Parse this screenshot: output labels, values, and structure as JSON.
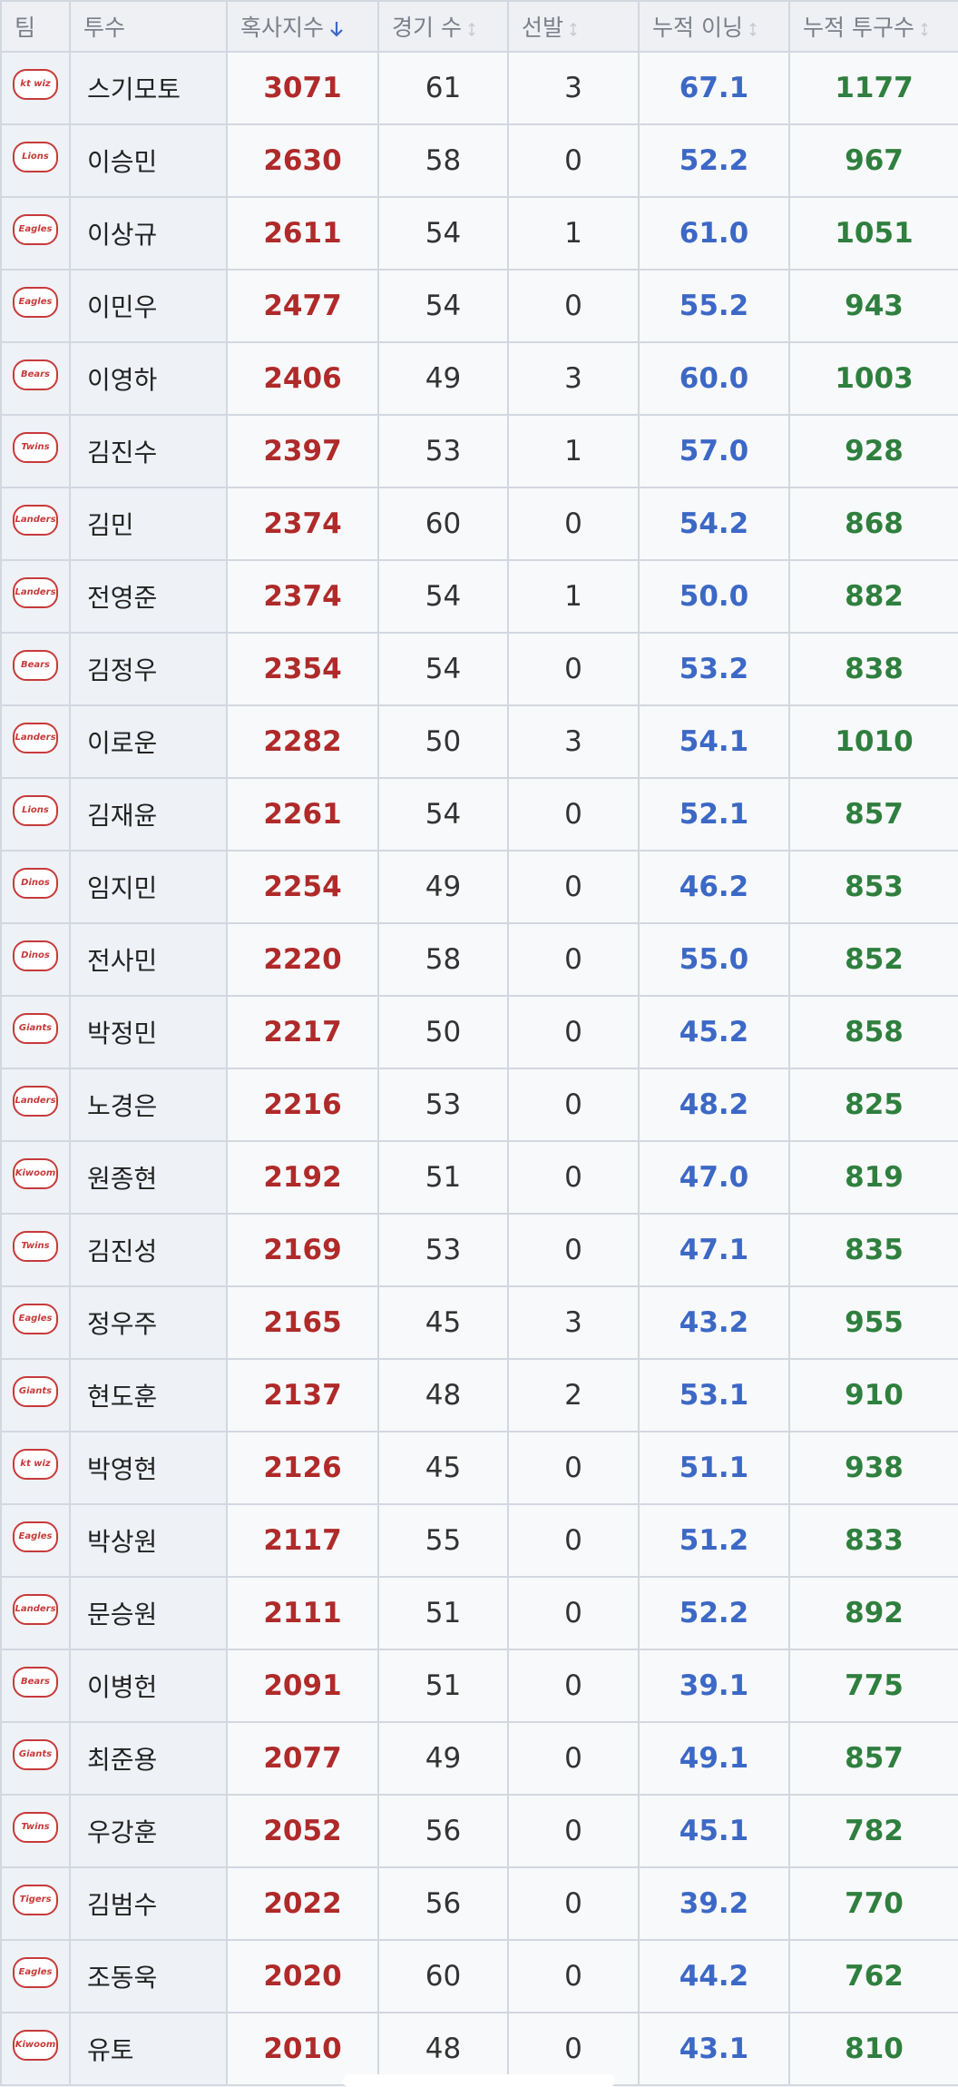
{
  "table": {
    "header": [
      "팀",
      "투수",
      "혹사지수",
      "경기 수",
      "선발",
      "누적 이닝",
      "누적 투구수"
    ],
    "rows": [
      [
        "kt wiz",
        "스기모토",
        3071,
        61,
        3,
        "67.1",
        1177
      ],
      [
        "Lions",
        "이승민",
        2630,
        58,
        0,
        "52.2",
        967
      ],
      [
        "Eagles",
        "이상규",
        2611,
        54,
        1,
        "61.0",
        1051
      ],
      [
        "Eagles",
        "이민우",
        2477,
        54,
        0,
        "55.2",
        943
      ],
      [
        "Bears",
        "이영하",
        2406,
        49,
        3,
        "60.0",
        1003
      ],
      [
        "Twins",
        "김진수",
        2397,
        53,
        1,
        "57.0",
        928
      ],
      [
        "Landers",
        "김민",
        2374,
        60,
        0,
        "54.2",
        868
      ],
      [
        "Landers",
        "전영준",
        2374,
        54,
        1,
        "50.0",
        882
      ],
      [
        "Bears",
        "김정우",
        2354,
        54,
        0,
        "53.2",
        838
      ],
      [
        "Landers",
        "이로운",
        2282,
        50,
        3,
        "54.1",
        1010
      ],
      [
        "Lions",
        "김재윤",
        2261,
        54,
        0,
        "52.1",
        857
      ],
      [
        "Dinos",
        "임지민",
        2254,
        49,
        0,
        "46.2",
        853
      ],
      [
        "Dinos",
        "전사민",
        2220,
        58,
        0,
        "55.0",
        852
      ],
      [
        "Giants",
        "박정민",
        2217,
        50,
        0,
        "45.2",
        858
      ],
      [
        "Landers",
        "노경은",
        2216,
        53,
        0,
        "48.2",
        825
      ],
      [
        "Kiwoom",
        "원종현",
        2192,
        51,
        0,
        "47.0",
        819
      ],
      [
        "Twins",
        "김진성",
        2169,
        53,
        0,
        "47.1",
        835
      ],
      [
        "Eagles",
        "정우주",
        2165,
        45,
        3,
        "43.2",
        955
      ],
      [
        "Giants",
        "현도훈",
        2137,
        48,
        2,
        "53.1",
        910
      ],
      [
        "kt wiz",
        "박영현",
        2126,
        45,
        0,
        "51.1",
        938
      ],
      [
        "Eagles",
        "박상원",
        2117,
        55,
        0,
        "51.2",
        833
      ],
      [
        "Landers",
        "문승원",
        2111,
        51,
        0,
        "52.2",
        892
      ],
      [
        "Bears",
        "이병헌",
        2091,
        51,
        0,
        "39.1",
        775
      ],
      [
        "Giants",
        "최준용",
        2077,
        49,
        0,
        "49.1",
        857
      ],
      [
        "Twins",
        "우강훈",
        2052,
        56,
        0,
        "45.1",
        782
      ],
      [
        "Tigers",
        "김범수",
        2022,
        56,
        0,
        "39.2",
        770
      ],
      [
        "Eagles",
        "조동욱",
        2020,
        60,
        0,
        "44.2",
        762
      ],
      [
        "Kiwoom",
        "유토",
        2010,
        48,
        0,
        "43.1",
        810
      ]
    ]
  }
}
